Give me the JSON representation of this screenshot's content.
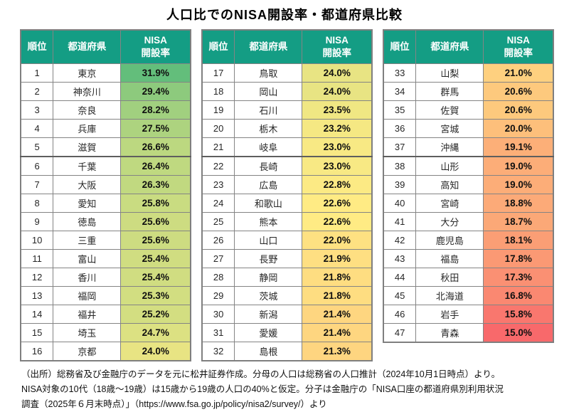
{
  "title": "人口比でのNISA開設率・都道府県比較",
  "table_headers": {
    "rank": "順位",
    "prefecture": "都道府県",
    "rate_line1": "NISA",
    "rate_line2": "開設率"
  },
  "colors": {
    "header_bg": "#149d84",
    "header_text": "#ffffff"
  },
  "color_scale": {
    "min_value": 15.0,
    "min_color": "#F8696B",
    "mid_value": 22.6,
    "mid_color": "#FFEB84",
    "max_value": 31.9,
    "max_color": "#63BE7B"
  },
  "tables": [
    {
      "rows": [
        {
          "rank": "1",
          "prefecture": "東京",
          "rate": "31.9%",
          "value": 31.9
        },
        {
          "rank": "2",
          "prefecture": "神奈川",
          "rate": "29.4%",
          "value": 29.4
        },
        {
          "rank": "3",
          "prefecture": "奈良",
          "rate": "28.2%",
          "value": 28.2
        },
        {
          "rank": "4",
          "prefecture": "兵庫",
          "rate": "27.5%",
          "value": 27.5
        },
        {
          "rank": "5",
          "prefecture": "滋賀",
          "rate": "26.6%",
          "value": 26.6
        },
        {
          "rank": "6",
          "prefecture": "千葉",
          "rate": "26.4%",
          "value": 26.4
        },
        {
          "rank": "7",
          "prefecture": "大阪",
          "rate": "26.3%",
          "value": 26.3
        },
        {
          "rank": "8",
          "prefecture": "愛知",
          "rate": "25.8%",
          "value": 25.8
        },
        {
          "rank": "9",
          "prefecture": "徳島",
          "rate": "25.6%",
          "value": 25.6
        },
        {
          "rank": "10",
          "prefecture": "三重",
          "rate": "25.6%",
          "value": 25.6
        },
        {
          "rank": "11",
          "prefecture": "富山",
          "rate": "25.4%",
          "value": 25.4
        },
        {
          "rank": "12",
          "prefecture": "香川",
          "rate": "25.4%",
          "value": 25.4
        },
        {
          "rank": "13",
          "prefecture": "福岡",
          "rate": "25.3%",
          "value": 25.3
        },
        {
          "rank": "14",
          "prefecture": "福井",
          "rate": "25.2%",
          "value": 25.2
        },
        {
          "rank": "15",
          "prefecture": "埼玉",
          "rate": "24.7%",
          "value": 24.7
        },
        {
          "rank": "16",
          "prefecture": "京都",
          "rate": "24.0%",
          "value": 24.0
        }
      ]
    },
    {
      "rows": [
        {
          "rank": "17",
          "prefecture": "鳥取",
          "rate": "24.0%",
          "value": 24.0
        },
        {
          "rank": "18",
          "prefecture": "岡山",
          "rate": "24.0%",
          "value": 24.0
        },
        {
          "rank": "19",
          "prefecture": "石川",
          "rate": "23.5%",
          "value": 23.5
        },
        {
          "rank": "20",
          "prefecture": "栃木",
          "rate": "23.2%",
          "value": 23.2
        },
        {
          "rank": "21",
          "prefecture": "岐阜",
          "rate": "23.0%",
          "value": 23.0
        },
        {
          "rank": "22",
          "prefecture": "長崎",
          "rate": "23.0%",
          "value": 23.0
        },
        {
          "rank": "23",
          "prefecture": "広島",
          "rate": "22.8%",
          "value": 22.8
        },
        {
          "rank": "24",
          "prefecture": "和歌山",
          "rate": "22.6%",
          "value": 22.6
        },
        {
          "rank": "25",
          "prefecture": "熊本",
          "rate": "22.6%",
          "value": 22.6
        },
        {
          "rank": "26",
          "prefecture": "山口",
          "rate": "22.0%",
          "value": 22.0
        },
        {
          "rank": "27",
          "prefecture": "長野",
          "rate": "21.9%",
          "value": 21.9
        },
        {
          "rank": "28",
          "prefecture": "静岡",
          "rate": "21.8%",
          "value": 21.8
        },
        {
          "rank": "29",
          "prefecture": "茨城",
          "rate": "21.8%",
          "value": 21.8
        },
        {
          "rank": "30",
          "prefecture": "新潟",
          "rate": "21.4%",
          "value": 21.4
        },
        {
          "rank": "31",
          "prefecture": "愛媛",
          "rate": "21.4%",
          "value": 21.4
        },
        {
          "rank": "32",
          "prefecture": "島根",
          "rate": "21.3%",
          "value": 21.3
        }
      ]
    },
    {
      "rows": [
        {
          "rank": "33",
          "prefecture": "山梨",
          "rate": "21.0%",
          "value": 21.0
        },
        {
          "rank": "34",
          "prefecture": "群馬",
          "rate": "20.6%",
          "value": 20.6
        },
        {
          "rank": "35",
          "prefecture": "佐賀",
          "rate": "20.6%",
          "value": 20.6
        },
        {
          "rank": "36",
          "prefecture": "宮城",
          "rate": "20.0%",
          "value": 20.0
        },
        {
          "rank": "37",
          "prefecture": "沖縄",
          "rate": "19.1%",
          "value": 19.1
        },
        {
          "rank": "38",
          "prefecture": "山形",
          "rate": "19.0%",
          "value": 19.0
        },
        {
          "rank": "39",
          "prefecture": "高知",
          "rate": "19.0%",
          "value": 19.0
        },
        {
          "rank": "40",
          "prefecture": "宮崎",
          "rate": "18.8%",
          "value": 18.8
        },
        {
          "rank": "41",
          "prefecture": "大分",
          "rate": "18.7%",
          "value": 18.7
        },
        {
          "rank": "42",
          "prefecture": "鹿児島",
          "rate": "18.1%",
          "value": 18.1
        },
        {
          "rank": "43",
          "prefecture": "福島",
          "rate": "17.8%",
          "value": 17.8
        },
        {
          "rank": "44",
          "prefecture": "秋田",
          "rate": "17.3%",
          "value": 17.3
        },
        {
          "rank": "45",
          "prefecture": "北海道",
          "rate": "16.8%",
          "value": 16.8
        },
        {
          "rank": "46",
          "prefecture": "岩手",
          "rate": "15.8%",
          "value": 15.8
        },
        {
          "rank": "47",
          "prefecture": "青森",
          "rate": "15.0%",
          "value": 15.0
        }
      ]
    }
  ],
  "footer": {
    "line1": "（出所）総務省及び金融庁のデータを元に松井証券作成。分母の人口は総務省の人口推計（2024年10月1日時点）より。",
    "line2": "NISA対象の10代（18歳～19歳）は15歳から19歳の人口の40%と仮定。分子は金融庁の「NISA口座の都道府県別利用状況",
    "line3": "調査（2025年６月末時点）」（https://www.fsa.go.jp/policy/nisa2/survey/）より"
  },
  "chart_data": {
    "type": "table",
    "title": "人口比でのNISA開設率・都道府県比較",
    "columns": [
      "順位",
      "都道府県",
      "NISA開設率"
    ],
    "rows": [
      [
        1,
        "東京",
        "31.9%"
      ],
      [
        2,
        "神奈川",
        "29.4%"
      ],
      [
        3,
        "奈良",
        "28.2%"
      ],
      [
        4,
        "兵庫",
        "27.5%"
      ],
      [
        5,
        "滋賀",
        "26.6%"
      ],
      [
        6,
        "千葉",
        "26.4%"
      ],
      [
        7,
        "大阪",
        "26.3%"
      ],
      [
        8,
        "愛知",
        "25.8%"
      ],
      [
        9,
        "徳島",
        "25.6%"
      ],
      [
        10,
        "三重",
        "25.6%"
      ],
      [
        11,
        "富山",
        "25.4%"
      ],
      [
        12,
        "香川",
        "25.4%"
      ],
      [
        13,
        "福岡",
        "25.3%"
      ],
      [
        14,
        "福井",
        "25.2%"
      ],
      [
        15,
        "埼玉",
        "24.7%"
      ],
      [
        16,
        "京都",
        "24.0%"
      ],
      [
        17,
        "鳥取",
        "24.0%"
      ],
      [
        18,
        "岡山",
        "24.0%"
      ],
      [
        19,
        "石川",
        "23.5%"
      ],
      [
        20,
        "栃木",
        "23.2%"
      ],
      [
        21,
        "岐阜",
        "23.0%"
      ],
      [
        22,
        "長崎",
        "23.0%"
      ],
      [
        23,
        "広島",
        "22.8%"
      ],
      [
        24,
        "和歌山",
        "22.6%"
      ],
      [
        25,
        "熊本",
        "22.6%"
      ],
      [
        26,
        "山口",
        "22.0%"
      ],
      [
        27,
        "長野",
        "21.9%"
      ],
      [
        28,
        "静岡",
        "21.8%"
      ],
      [
        29,
        "茨城",
        "21.8%"
      ],
      [
        30,
        "新潟",
        "21.4%"
      ],
      [
        31,
        "愛媛",
        "21.4%"
      ],
      [
        32,
        "島根",
        "21.3%"
      ],
      [
        33,
        "山梨",
        "21.0%"
      ],
      [
        34,
        "群馬",
        "20.6%"
      ],
      [
        35,
        "佐賀",
        "20.6%"
      ],
      [
        36,
        "宮城",
        "20.0%"
      ],
      [
        37,
        "沖縄",
        "19.1%"
      ],
      [
        38,
        "山形",
        "19.0%"
      ],
      [
        39,
        "高知",
        "19.0%"
      ],
      [
        40,
        "宮崎",
        "18.8%"
      ],
      [
        41,
        "大分",
        "18.7%"
      ],
      [
        42,
        "鹿児島",
        "18.1%"
      ],
      [
        43,
        "福島",
        "17.8%"
      ],
      [
        44,
        "秋田",
        "17.3%"
      ],
      [
        45,
        "北海道",
        "16.8%"
      ],
      [
        46,
        "岩手",
        "15.8%"
      ],
      [
        47,
        "青森",
        "15.0%"
      ]
    ],
    "color_scale": "3-color: #F8696B (15.0%) → #FFEB84 (22.6%) → #63BE7B (31.9%)"
  }
}
